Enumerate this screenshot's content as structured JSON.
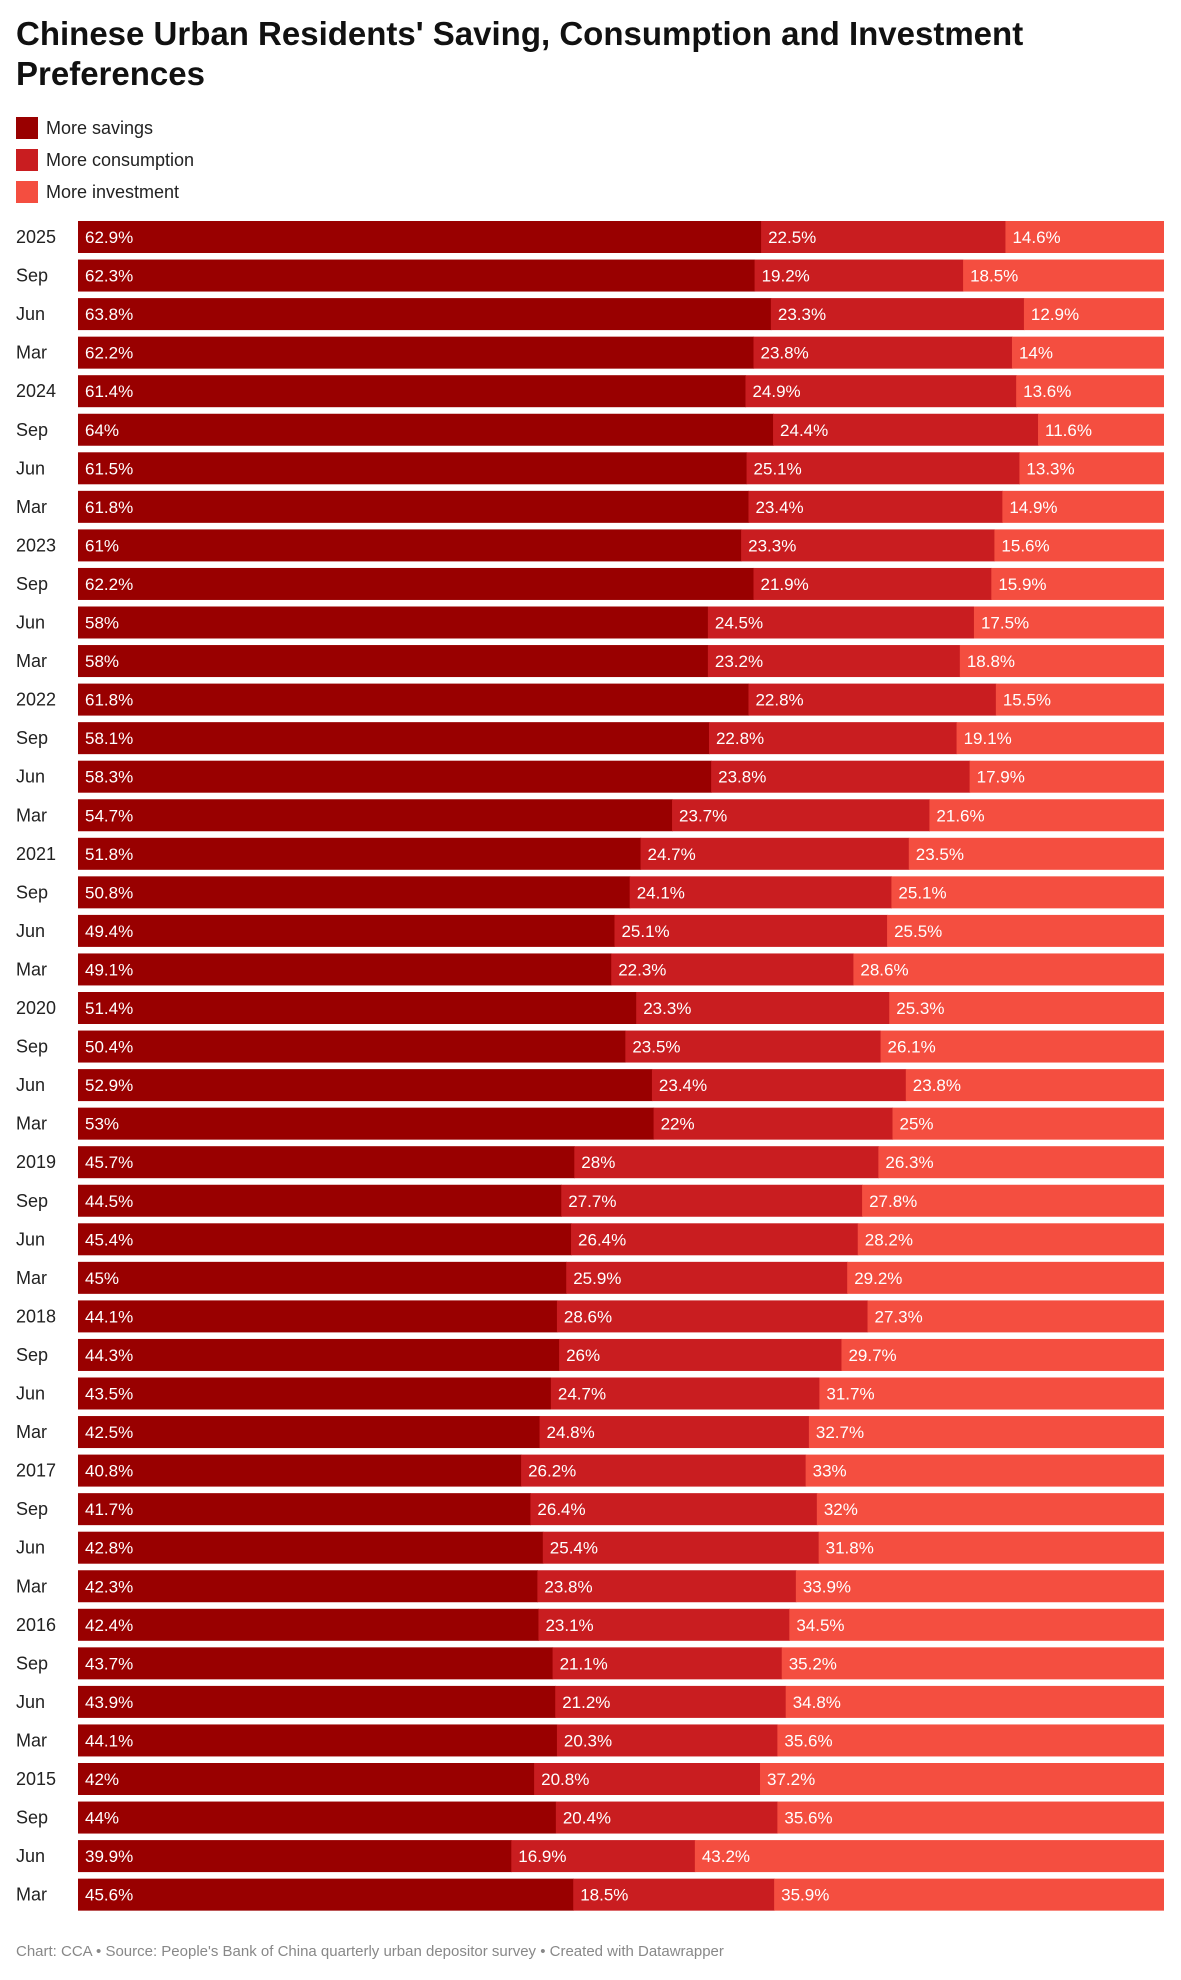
{
  "chart_data": {
    "type": "bar",
    "orientation": "horizontal",
    "stacked": true,
    "title": "Chinese Urban Residents' Saving, Consumption and Investment Preferences",
    "legend_placement": "top-left",
    "categories": [
      "2025",
      "Sep",
      "Jun",
      "Mar",
      "2024",
      "Sep",
      "Jun",
      "Mar",
      "2023",
      "Sep",
      "Jun",
      "Mar",
      "2022",
      "Sep",
      "Jun",
      "Mar",
      "2021",
      "Sep",
      "Jun",
      "Mar",
      "2020",
      "Sep",
      "Jun",
      "Mar",
      "2019",
      "Sep",
      "Jun",
      "Mar",
      "2018",
      "Sep",
      "Jun",
      "Mar",
      "2017",
      "Sep",
      "Jun",
      "Mar",
      "2016",
      "Sep",
      "Jun",
      "Mar",
      "2015",
      "Sep",
      "Jun",
      "Mar"
    ],
    "series": [
      {
        "name": "More savings",
        "color": "#990000",
        "values": [
          62.9,
          62.3,
          63.8,
          62.2,
          61.4,
          64,
          61.5,
          61.8,
          61,
          62.2,
          58,
          58,
          61.8,
          58.1,
          58.3,
          54.7,
          51.8,
          50.8,
          49.4,
          49.1,
          51.4,
          50.4,
          52.9,
          53,
          45.7,
          44.5,
          45.4,
          45,
          44.1,
          44.3,
          43.5,
          42.5,
          40.8,
          41.7,
          42.8,
          42.3,
          42.4,
          43.7,
          43.9,
          44.1,
          42,
          44,
          39.9,
          45.6
        ]
      },
      {
        "name": "More consumption",
        "color": "#c91d20",
        "values": [
          22.5,
          19.2,
          23.3,
          23.8,
          24.9,
          24.4,
          25.1,
          23.4,
          23.3,
          21.9,
          24.5,
          23.2,
          22.8,
          22.8,
          23.8,
          23.7,
          24.7,
          24.1,
          25.1,
          22.3,
          23.3,
          23.5,
          23.4,
          22,
          28,
          27.7,
          26.4,
          25.9,
          28.6,
          26,
          24.7,
          24.8,
          26.2,
          26.4,
          25.4,
          23.8,
          23.1,
          21.1,
          21.2,
          20.3,
          20.8,
          20.4,
          16.9,
          18.5
        ]
      },
      {
        "name": "More investment",
        "color": "#f44e40",
        "values": [
          14.6,
          18.5,
          12.9,
          14,
          13.6,
          11.6,
          13.3,
          14.9,
          15.6,
          15.9,
          17.5,
          18.8,
          15.5,
          19.1,
          17.9,
          21.6,
          23.5,
          25.1,
          25.5,
          28.6,
          25.3,
          26.1,
          23.8,
          25,
          26.3,
          27.8,
          28.2,
          29.2,
          27.3,
          29.7,
          31.7,
          32.7,
          33,
          32,
          31.8,
          33.9,
          34.5,
          35.2,
          34.8,
          35.6,
          37.2,
          35.6,
          43.2,
          35.9
        ]
      }
    ]
  },
  "footer": "Chart: CCA • Source: People's Bank of China quarterly urban depositor survey • Created with Datawrapper"
}
